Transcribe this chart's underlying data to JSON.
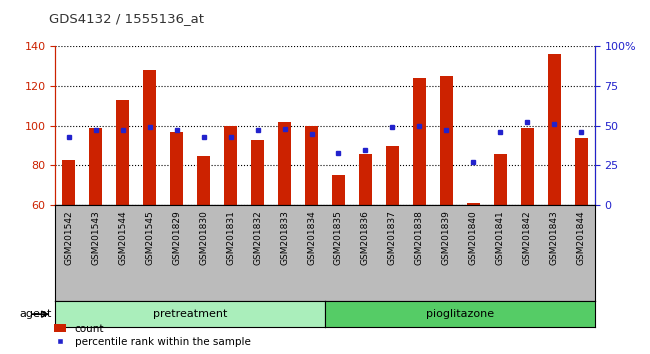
{
  "title": "GDS4132 / 1555136_at",
  "samples": [
    "GSM201542",
    "GSM201543",
    "GSM201544",
    "GSM201545",
    "GSM201829",
    "GSM201830",
    "GSM201831",
    "GSM201832",
    "GSM201833",
    "GSM201834",
    "GSM201835",
    "GSM201836",
    "GSM201837",
    "GSM201838",
    "GSM201839",
    "GSM201840",
    "GSM201841",
    "GSM201842",
    "GSM201843",
    "GSM201844"
  ],
  "counts": [
    83,
    99,
    113,
    128,
    97,
    85,
    100,
    93,
    102,
    100,
    75,
    86,
    90,
    124,
    125,
    61,
    86,
    99,
    136,
    94
  ],
  "percentile": [
    43,
    47,
    47,
    49,
    47,
    43,
    43,
    47,
    48,
    45,
    33,
    35,
    49,
    50,
    47,
    27,
    46,
    52,
    51,
    46
  ],
  "bar_color": "#cc2200",
  "dot_color": "#2222cc",
  "ylim_left": [
    60,
    140
  ],
  "ylim_right": [
    0,
    100
  ],
  "yticks_left": [
    60,
    80,
    100,
    120,
    140
  ],
  "yticks_right": [
    0,
    25,
    50,
    75,
    100
  ],
  "yticklabels_right": [
    "0",
    "25",
    "50",
    "75",
    "100%"
  ],
  "groups": [
    {
      "label": "pretreatment",
      "start": 0,
      "end": 9,
      "color": "#aaeebb"
    },
    {
      "label": "pioglitazone",
      "start": 10,
      "end": 19,
      "color": "#55cc66"
    }
  ],
  "agent_label": "agent",
  "legend_count": "count",
  "legend_pct": "percentile rank within the sample",
  "bar_width": 0.5,
  "sample_bg_color": "#bbbbbb",
  "plot_bg_color": "#ffffff",
  "title_color": "#333333",
  "left_tick_color": "#cc2200",
  "right_tick_color": "#2222cc"
}
